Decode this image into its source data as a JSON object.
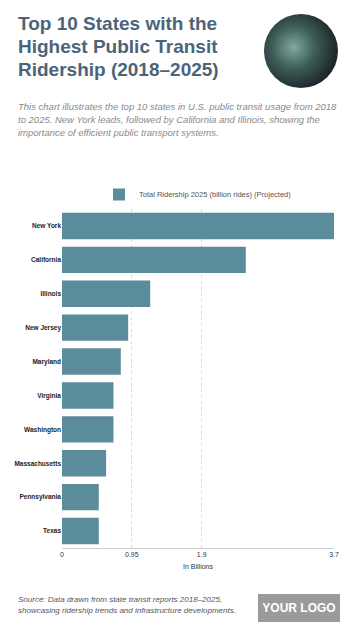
{
  "chart_data": {
    "type": "bar",
    "title": "Top 10 States with the Highest Public Transit Ridership (2018–2025)",
    "subtitle": "This chart illustrates the top 10 states in U.S. public transit usage from 2018 to 2025. New York leads, followed by California and Illinois, showing the importance of efficient public transport systems.",
    "categories": [
      "New York",
      "California",
      "Illinois",
      "New Jersey",
      "Maryland",
      "Virginia",
      "Washington",
      "Massachusetts",
      "Pennsylvania",
      "Texas"
    ],
    "series": [
      {
        "name": "Total Ridership 2025 (billion rides) (Projected)",
        "color": "#5b8c9c",
        "values": [
          3.7,
          2.5,
          1.2,
          0.9,
          0.8,
          0.7,
          0.7,
          0.6,
          0.5,
          0.5
        ]
      }
    ],
    "orientation": "horizontal",
    "x_label": "In Billions",
    "xlim": [
      0,
      3.7
    ],
    "xticks": [
      0,
      0.95,
      1.9,
      3.7
    ],
    "grid": true,
    "legend": "top",
    "source": "Source: Data drawn from state transit reports 2018–2025, showcasing ridership trends and infrastructure developments.",
    "logo": "YOUR LOGO"
  }
}
